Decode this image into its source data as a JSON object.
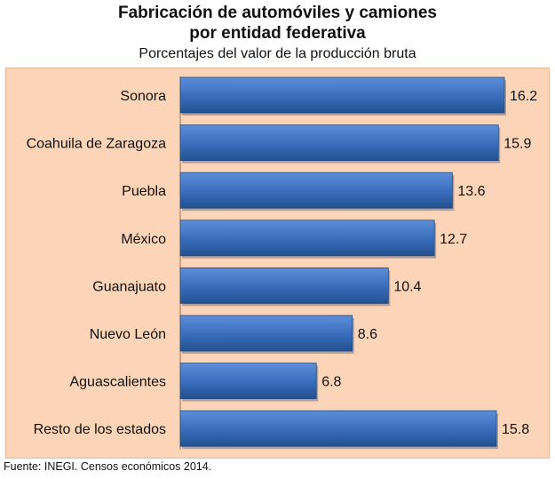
{
  "chart_data": {
    "type": "bar",
    "orientation": "horizontal",
    "title_line1": "Fabricación de automóviles y camiones",
    "title_line2": "por entidad federativa",
    "subtitle": "Porcentajes del valor de la producción bruta",
    "categories": [
      "Sonora",
      "Coahuila de Zaragoza",
      "Puebla",
      "México",
      "Guanajuato",
      "Nuevo León",
      "Aguascalientes",
      "Resto de los estados"
    ],
    "values": [
      16.2,
      15.9,
      13.6,
      12.7,
      10.4,
      8.6,
      6.8,
      15.8
    ],
    "value_labels": [
      "16.2",
      "15.9",
      "13.6",
      "12.7",
      "10.4",
      "8.6",
      "6.8",
      "15.8"
    ],
    "xlim": [
      0,
      16.2
    ],
    "grid": false,
    "bar_color": "#3b6fbf",
    "background_color": "#fcd5b8"
  },
  "footer": {
    "source": "Fuente: INEGI. Censos económicos 2014."
  }
}
